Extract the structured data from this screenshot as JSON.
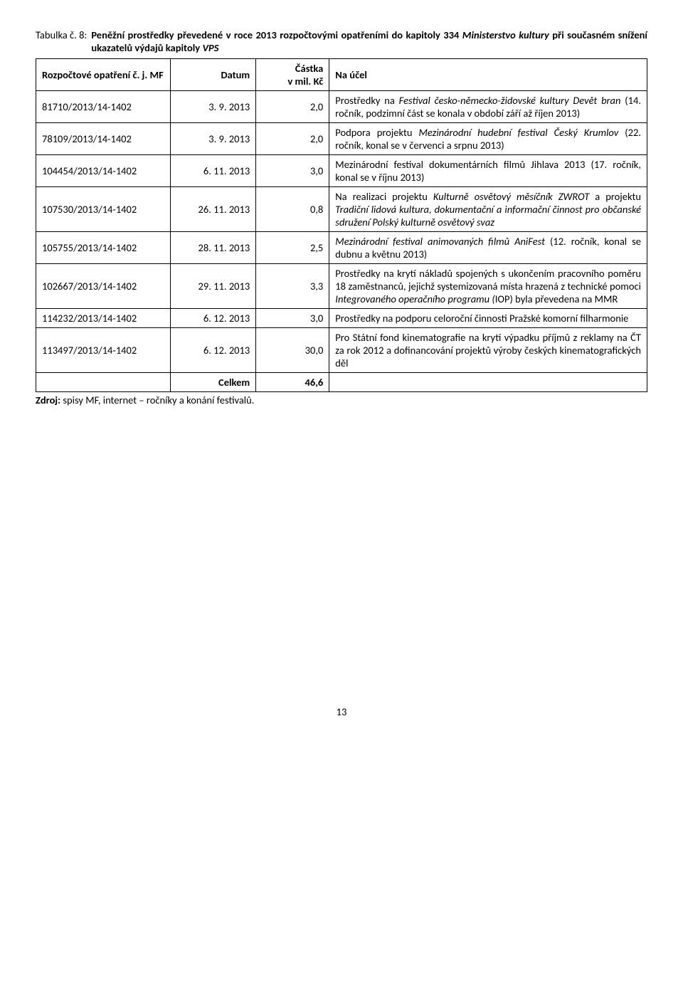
{
  "caption": {
    "label": "Tabulka č. 8:",
    "title_pre": "Peněžní prostředky převedené v roce 2013 rozpočtovými opatřeními do kapitoly 334 ",
    "title_italic1": "Ministerstvo kultury",
    "title_mid": " při současném snížení ukazatelů výdajů kapitoly ",
    "title_italic2": "VPS"
  },
  "headers": {
    "id": "Rozpočtové opatření č. j. MF",
    "date": "Datum",
    "amount_l1": "Částka",
    "amount_l2": "v mil. Kč",
    "purpose": "Na účel"
  },
  "rows": [
    {
      "id": "81710/2013/14-1402",
      "date": "3. 9. 2013",
      "amount": "2,0",
      "purpose_html": "Prostředky na <em>Festival česko-německo-židovské kultury Devět bran</em> (14. ročník, podzimní část se konala v období září až říjen 2013)"
    },
    {
      "id": "78109/2013/14-1402",
      "date": "3. 9. 2013",
      "amount": "2,0",
      "purpose_html": "Podpora projektu <em>Mezinárodní hudební festival Český Krumlov</em> (22. ročník, konal se v červenci a srpnu 2013)"
    },
    {
      "id": "104454/2013/14-1402",
      "date": "6. 11. 2013",
      "amount": "3,0",
      "purpose_html": "Mezinárodní festival dokumentárních filmů Jihlava 2013 (17. ročník, konal se v říjnu 2013)"
    },
    {
      "id": "107530/2013/14-1402",
      "date": "26. 11. 2013",
      "amount": "0,8",
      "purpose_html": "Na realizaci projektu <em>Kulturně osvětový měsíčník ZWROT</em> a projektu <em>Tradiční lidová kultura, dokumentační a informační činnost pro občanské sdružení Polský kulturně osvětový svaz</em>"
    },
    {
      "id": "105755/2013/14-1402",
      "date": "28. 11. 2013",
      "amount": "2,5",
      "purpose_html": "<em>Mezinárodní festival animovaných filmů AniFest</em> (12. ročník, konal se dubnu a květnu 2013)"
    },
    {
      "id": "102667/2013/14-1402",
      "date": "29. 11. 2013",
      "amount": "3,3",
      "purpose_html": "Prostředky na krytí nákladů spojených s ukončením pracovního poměru 18 zaměstnanců, jejichž systemizovaná místa hrazená z technické pomoci <em>Integrovaného operačního programu (</em>IOP) byla převedena na MMR"
    },
    {
      "id": "114232/2013/14-1402",
      "date": "6. 12. 2013",
      "amount": "3,0",
      "purpose_html": "Prostředky na podporu celoroční činnosti Pražské komorní filharmonie"
    },
    {
      "id": "113497/2013/14-1402",
      "date": "6. 12. 2013",
      "amount": "30,0",
      "purpose_html": "Pro Státní fond kinematografie na krytí výpadku příjmů z reklamy na ČT za rok 2012 a dofinancování projektů výroby českých kinematografických děl"
    }
  ],
  "total": {
    "label": "Celkem",
    "value": "46,6"
  },
  "source_label": "Zdroj:",
  "source_text": " spisy MF, internet – ročníky a konání festivalů.",
  "page_number": "13",
  "style": {
    "font_family": "Calibri, Arial, sans-serif",
    "font_size_pt": 11,
    "border_color": "#000000",
    "background_color": "#ffffff",
    "text_color": "#000000",
    "col_widths_pct": [
      22,
      14,
      12,
      52
    ]
  }
}
